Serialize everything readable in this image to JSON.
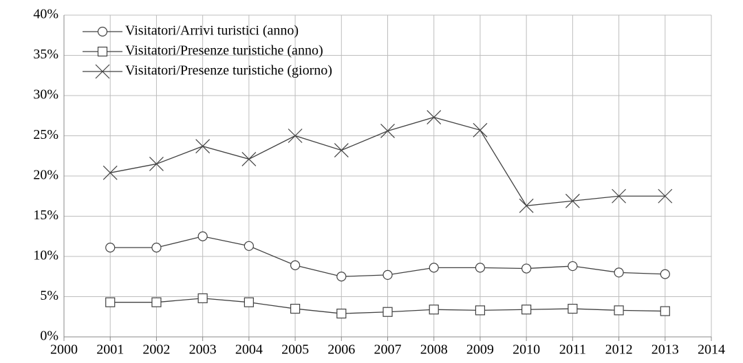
{
  "chart_data": {
    "type": "line",
    "x": [
      2001,
      2002,
      2003,
      2004,
      2005,
      2006,
      2007,
      2008,
      2009,
      2010,
      2011,
      2012,
      2013
    ],
    "series": [
      {
        "name": "Visitatori/Arrivi turistici (anno)",
        "color": "#404040",
        "marker": "circle",
        "values": [
          11.1,
          11.1,
          12.5,
          11.3,
          8.9,
          7.5,
          7.7,
          8.6,
          8.6,
          8.5,
          8.8,
          8.0,
          7.8
        ]
      },
      {
        "name": "Visitatori/Presenze turistiche (anno)",
        "color": "#404040",
        "marker": "square",
        "values": [
          4.3,
          4.3,
          4.8,
          4.3,
          3.5,
          2.9,
          3.1,
          3.4,
          3.3,
          3.4,
          3.5,
          3.3,
          3.2
        ]
      },
      {
        "name": "Visitatori/Presenze turistiche (giorno)",
        "color": "#404040",
        "marker": "cross",
        "values": [
          20.4,
          21.5,
          23.7,
          22.1,
          25.0,
          23.2,
          25.6,
          27.3,
          25.7,
          16.3,
          16.9,
          17.5,
          17.5
        ]
      }
    ],
    "xlim": [
      2000,
      2014
    ],
    "xticks": [
      2000,
      2001,
      2002,
      2003,
      2004,
      2005,
      2006,
      2007,
      2008,
      2009,
      2010,
      2011,
      2012,
      2013,
      2014
    ],
    "ylim": [
      0,
      40
    ],
    "yticks": [
      {
        "value": 0,
        "label": "0%"
      },
      {
        "value": 5,
        "label": "5%"
      },
      {
        "value": 10,
        "label": "10%"
      },
      {
        "value": 15,
        "label": "15%"
      },
      {
        "value": 20,
        "label": "20%"
      },
      {
        "value": 25,
        "label": "25%"
      },
      {
        "value": 30,
        "label": "30%"
      },
      {
        "value": 35,
        "label": "35%"
      },
      {
        "value": 40,
        "label": "40%"
      }
    ],
    "grid": true,
    "legend": "top-left"
  }
}
